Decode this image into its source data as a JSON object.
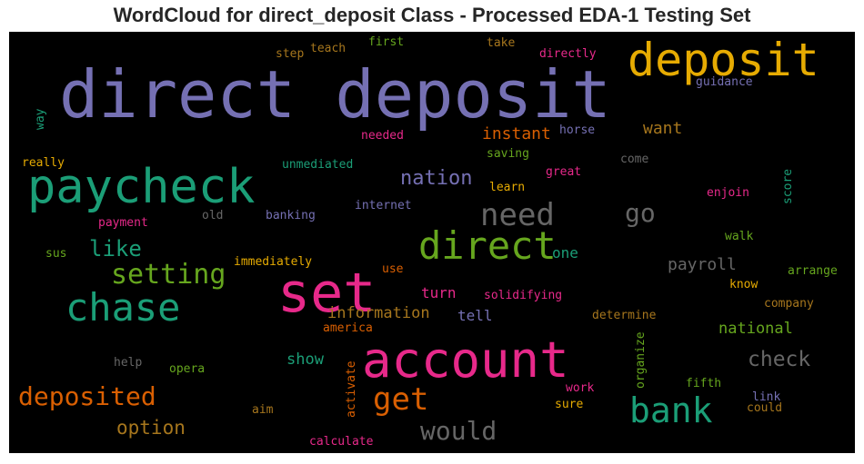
{
  "title": "WordCloud for direct_deposit Class - Processed EDA-1 Testing Set",
  "words": {
    "direct_deposit": "direct deposit",
    "deposit": "deposit",
    "paycheck": "paycheck",
    "set": "set",
    "account": "account",
    "chase": "chase",
    "direct": "direct",
    "need": "need",
    "bank": "bank",
    "setting": "setting",
    "get": "get",
    "deposited": "deposited",
    "would": "would",
    "go": "go",
    "like": "like",
    "nation": "nation",
    "check": "check",
    "option": "option",
    "instant": "instant",
    "want": "want",
    "payroll": "payroll",
    "information": "information",
    "national": "national",
    "show": "show",
    "turn": "turn",
    "tell": "tell",
    "one": "one",
    "step": "step",
    "teach": "teach",
    "first": "first",
    "take": "take",
    "directly": "directly",
    "guidance": "guidance",
    "way": "way",
    "needed": "needed",
    "horse": "horse",
    "really": "really",
    "unmediated": "unmediated",
    "saving": "saving",
    "great": "great",
    "come": "come",
    "learn": "learn",
    "enjoin": "enjoin",
    "score": "score",
    "internet": "internet",
    "banking": "banking",
    "payment": "payment",
    "old": "old",
    "sus": "sus",
    "walk": "walk",
    "immediately": "immediately",
    "use": "use",
    "arrange": "arrange",
    "know": "know",
    "solidifying": "solidifying",
    "company": "company",
    "america": "america",
    "determine": "determine",
    "help": "help",
    "opera": "opera",
    "organize": "organize",
    "fifth": "fifth",
    "work": "work",
    "link": "link",
    "activate": "activate",
    "aim": "aim",
    "sure": "sure",
    "could": "could",
    "calculate": "calculate"
  },
  "colors": {
    "purple": "#7570b3",
    "orange": "#d95f02",
    "teal": "#1b9e77",
    "pink": "#e7298a",
    "green": "#66a61e",
    "gold": "#e6ab02",
    "brown": "#a6761d",
    "gray": "#666666"
  }
}
